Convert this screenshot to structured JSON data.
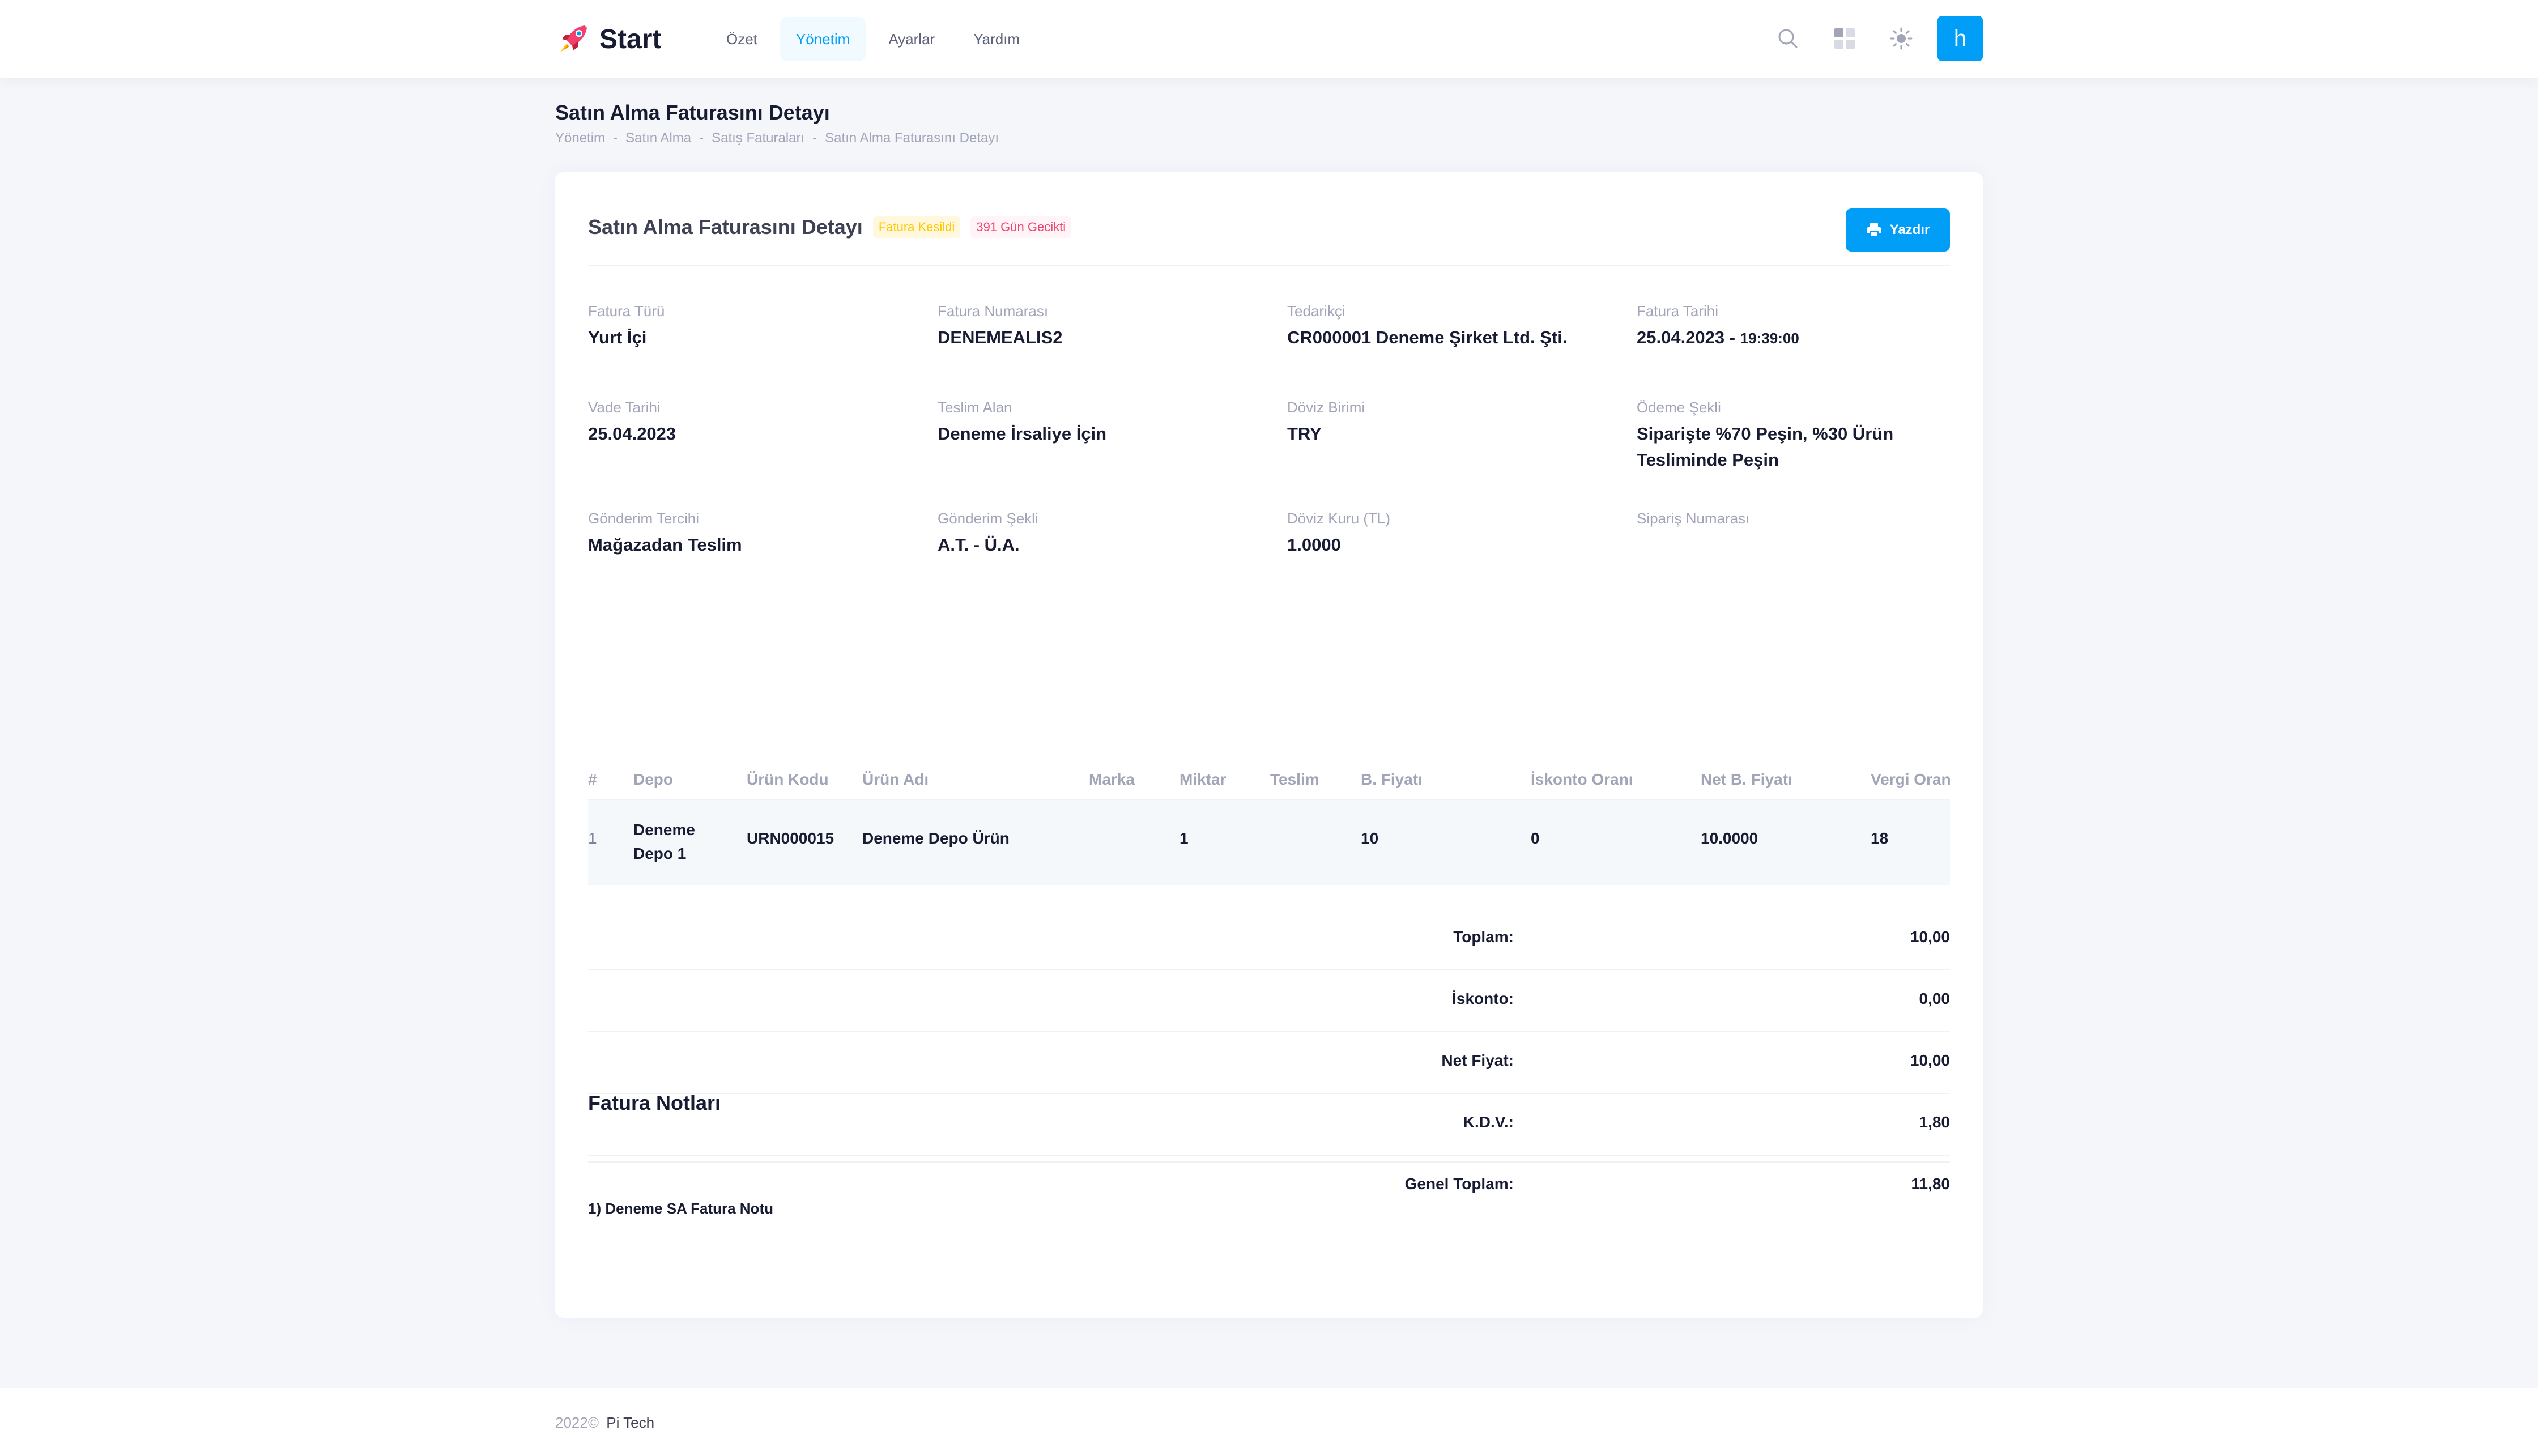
{
  "brand": {
    "name": "Start"
  },
  "nav": [
    {
      "label": "Özet"
    },
    {
      "label": "Yönetim"
    },
    {
      "label": "Ayarlar"
    },
    {
      "label": "Yardım"
    }
  ],
  "user": {
    "initial": "h"
  },
  "colors": {
    "accent": "#009ef7",
    "warning": "#ffc700",
    "danger": "#f1416c"
  },
  "page": {
    "title": "Satın Alma Faturasını Detayı",
    "breadcrumb": [
      "Yönetim",
      "Satın Alma",
      "Satış Faturaları",
      "Satın Alma Faturasını Detayı"
    ]
  },
  "card": {
    "title": "Satın Alma Faturasını Detayı",
    "badge_status": "Fatura Kesildi",
    "badge_delay": "391 Gün Gecikti",
    "print_label": "Yazdır"
  },
  "info": {
    "fatura_turu": {
      "label": "Fatura Türü",
      "value": "Yurt İçi"
    },
    "fatura_no": {
      "label": "Fatura Numarası",
      "value": "DENEMEALIS2"
    },
    "tedarikci": {
      "label": "Tedarikçi",
      "value": "CR000001 Deneme Şirket Ltd. Şti."
    },
    "fatura_tarihi": {
      "label": "Fatura Tarihi",
      "date": "25.04.2023 -",
      "time": "19:39:00"
    },
    "vade_tarihi": {
      "label": "Vade Tarihi",
      "value": "25.04.2023"
    },
    "teslim_alan": {
      "label": "Teslim Alan",
      "value": "Deneme İrsaliye İçin"
    },
    "doviz_birimi": {
      "label": "Döviz Birimi",
      "value": "TRY"
    },
    "odeme_sekli": {
      "label": "Ödeme Şekli",
      "value": "Siparişte %70 Peşin, %30 Ürün Tesliminde Peşin"
    },
    "gonderim_tercihi": {
      "label": "Gönderim Tercihi",
      "value": "Mağazadan Teslim"
    },
    "gonderim_sekli": {
      "label": "Gönderim Şekli",
      "value": "A.T. - Ü.A."
    },
    "doviz_kuru": {
      "label": "Döviz Kuru (TL)",
      "value": "1.0000"
    },
    "siparis_no": {
      "label": "Sipariş Numarası",
      "value": ""
    }
  },
  "table": {
    "headers": [
      "#",
      "Depo",
      "Ürün Kodu",
      "Ürün Adı",
      "Marka",
      "Miktar",
      "Teslim",
      "B. Fiyatı",
      "İskonto Oranı",
      "Net B. Fiyatı",
      "Vergi Oran"
    ],
    "rows": [
      {
        "no": "1",
        "depo": "Deneme Depo 1",
        "kod": "URN000015",
        "ad": "Deneme Depo Ürün",
        "marka": "",
        "miktar": "1",
        "teslim": "",
        "fiyat": "10",
        "iskonto": "0",
        "net": "10.0000",
        "vergi": "18"
      }
    ]
  },
  "totals": [
    {
      "label": "Toplam:",
      "value": "10,00"
    },
    {
      "label": "İskonto:",
      "value": "0,00"
    },
    {
      "label": "Net Fiyat:",
      "value": "10,00"
    },
    {
      "label": "K.D.V.:",
      "value": "1,80"
    },
    {
      "label": "Genel Toplam:",
      "value": "11,80"
    }
  ],
  "notes": {
    "title": "Fatura Notları",
    "items": [
      "1) Deneme SA Fatura Notu"
    ]
  },
  "footer": {
    "year": "2022©",
    "brand": "Pi Tech"
  }
}
